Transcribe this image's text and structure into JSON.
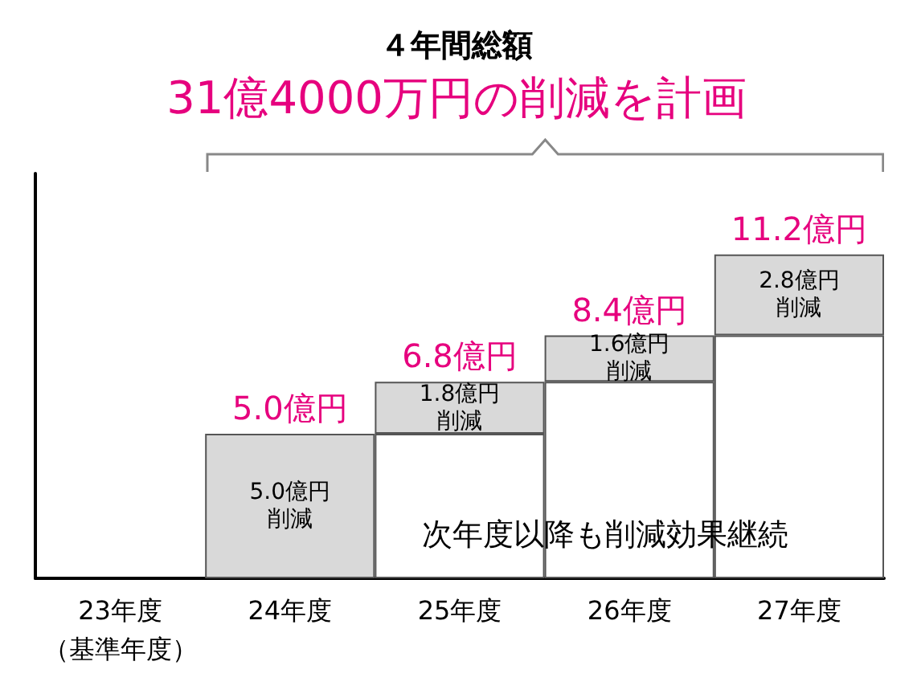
{
  "chart_data": {
    "type": "bar",
    "title": "４年間総額",
    "subtitle": "31億4000万円の削減を計画",
    "categories": [
      "23年度",
      "24年度",
      "25年度",
      "26年度",
      "27年度"
    ],
    "stacked": true,
    "series": [
      {
        "color": "#ffffff",
        "values": [
          null,
          null,
          5.0,
          6.8,
          8.4
        ]
      },
      {
        "color": "#d9d9d9",
        "values": [
          null,
          5.0,
          1.8,
          1.6,
          2.8
        ],
        "value_labels": [
          null,
          "5.0億円削減",
          "1.8億円削減",
          "1.6億円削減",
          "2.8億円削減"
        ]
      }
    ],
    "totals": [
      null,
      "5.0億円",
      "6.8億円",
      "8.4億円",
      "11.2億円"
    ],
    "annotations": [
      "次年度以降も削減効果継続",
      "（基準年度）"
    ],
    "ylim": [
      0,
      14
    ],
    "tick_labels": "x",
    "grid": false
  }
}
